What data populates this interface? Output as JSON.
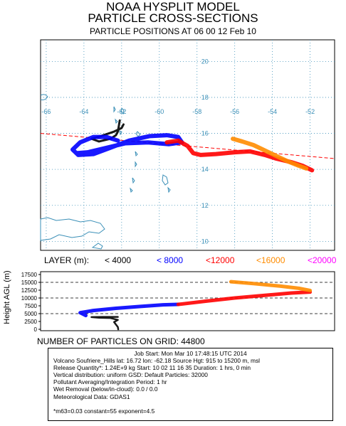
{
  "header": {
    "line1": "NOAA HYSPLIT MODEL",
    "line2": "PARTICLE CROSS-SECTIONS",
    "line3": "PARTICLE POSITIONS AT 06 00  12 Feb 10"
  },
  "legend": {
    "label": "LAYER (m):",
    "items": [
      {
        "text": "< 4000",
        "color": "#000000"
      },
      {
        "text": "< 8000",
        "color": "#0000ff"
      },
      {
        "text": "<12000",
        "color": "#ff0000"
      },
      {
        "text": "<16000",
        "color": "#ff8c00"
      },
      {
        "text": "<20000",
        "color": "#ff00ff"
      }
    ]
  },
  "particle_count": "NUMBER OF PARTICLES ON GRID:  44800",
  "info": {
    "job": "Job Start: Mon Mar 10 17:48:15 UTC 2014",
    "line1": "Volcano  Soufriere_Hills  lat: 16.72 lon: -62.18 Source Hgt: 915 to 15200 m, msl",
    "line2": "Release Quantity*: 1.24E+9 kg     Start: 10 02 11 16 35 Duration: 1 hrs, 0 min",
    "line3": "Vertical distribution: uniform GSD: Default Particles: 32000",
    "line4": "Pollutant Averaging/Integration Period: 1 hr",
    "line5": "Wet Removal (below/in-cloud):  0.0 / 0.0",
    "line6": "Meteorological Data: GDAS1",
    "line7": "*m63=0.03  constant=55 exponent=4.5"
  },
  "chart_data": [
    {
      "type": "scatter",
      "title": "PARTICLE POSITIONS AT 06 00  12 Feb 10",
      "lon_ticks": [
        -66,
        -64,
        -62,
        -60,
        -58,
        -56,
        -54,
        -52
      ],
      "lat_ticks": [
        10,
        12,
        14,
        16,
        18,
        20
      ],
      "xlim": [
        -66.3,
        -50.7
      ],
      "ylim": [
        9.5,
        21.2
      ],
      "cross_section_line": {
        "lon": [
          -66.3,
          -50.7
        ],
        "lat": [
          16.0,
          14.6
        ],
        "color": "#ff0000"
      },
      "source": {
        "lat": 16.72,
        "lon": -62.18
      },
      "series": [
        {
          "name": "< 4000",
          "color": "#000000",
          "lon": [
            -62.1,
            -62.15,
            -62.2,
            -62.3,
            -62.6,
            -63.2,
            -63.6,
            -63.1,
            -62.4,
            -62.0,
            -61.9
          ],
          "lat": [
            16.72,
            16.4,
            16.1,
            15.9,
            15.7,
            15.55,
            15.7,
            15.85,
            16.1,
            16.3,
            16.5
          ]
        },
        {
          "name": "< 8000",
          "color": "#0000ff",
          "lon": [
            -62.2,
            -62.8,
            -63.5,
            -64.2,
            -64.6,
            -64.3,
            -63.5,
            -62.6,
            -61.6,
            -60.5,
            -59.6,
            -59.0,
            -58.8,
            -59.5,
            -60.6,
            -61.8,
            -62.8,
            -63.8,
            -64.4
          ],
          "lat": [
            15.6,
            15.8,
            15.8,
            15.5,
            15.1,
            14.8,
            14.85,
            15.2,
            15.6,
            15.85,
            15.9,
            15.8,
            15.5,
            15.4,
            15.5,
            15.45,
            15.2,
            14.95,
            14.9
          ]
        },
        {
          "name": "<12000",
          "color": "#ff0000",
          "lon": [
            -59.6,
            -59.0,
            -58.5,
            -58.2,
            -57.8,
            -57.0,
            -56.0,
            -55.2,
            -54.8,
            -54.4,
            -53.8,
            -53.0,
            -52.4,
            -51.9
          ],
          "lat": [
            15.5,
            15.6,
            15.3,
            14.9,
            14.8,
            14.85,
            14.95,
            15.0,
            14.9,
            14.8,
            14.6,
            14.4,
            14.2,
            13.95
          ]
        },
        {
          "name": "<16000",
          "color": "#ff8c00",
          "lon": [
            -56.1,
            -55.6,
            -55.0,
            -54.4,
            -53.8,
            -53.2,
            -52.6,
            -52.2
          ],
          "lat": [
            15.7,
            15.55,
            15.35,
            15.05,
            14.75,
            14.45,
            14.2,
            14.05
          ]
        }
      ]
    },
    {
      "type": "scatter",
      "ylabel": "Height AGL (m)",
      "yticks": [
        0,
        2500,
        5000,
        7500,
        10000,
        12500,
        15000,
        17500
      ],
      "ylim": [
        0,
        17500
      ],
      "dashed_levels": [
        5000,
        10000,
        15000
      ],
      "series": [
        {
          "name": "< 4000",
          "color": "#000000",
          "lon": [
            -62.18,
            -62.2,
            -62.3,
            -62.4,
            -62.2,
            -62.6,
            -63.2,
            -63.6,
            -63.0,
            -62.2
          ],
          "height": [
            0,
            700,
            1500,
            2300,
            3000,
            3600,
            3700,
            3900,
            3950,
            3950
          ]
        },
        {
          "name": "< 8000",
          "color": "#0000ff",
          "lon": [
            -63.9,
            -64.2,
            -63.5,
            -62.3,
            -61.0,
            -59.8,
            -59.0
          ],
          "height": [
            4400,
            5300,
            6000,
            6700,
            7300,
            7800,
            7950
          ]
        },
        {
          "name": "<12000",
          "color": "#ff0000",
          "lon": [
            -59.0,
            -57.5,
            -56.0,
            -54.5,
            -53.0,
            -52.0
          ],
          "height": [
            7950,
            9000,
            10000,
            10800,
            11600,
            11900
          ]
        },
        {
          "name": "<16000",
          "color": "#ff8c00",
          "lon": [
            -56.2,
            -55.0,
            -53.6,
            -52.6,
            -52.0
          ],
          "height": [
            15200,
            14600,
            13800,
            13100,
            12400
          ]
        }
      ]
    }
  ]
}
